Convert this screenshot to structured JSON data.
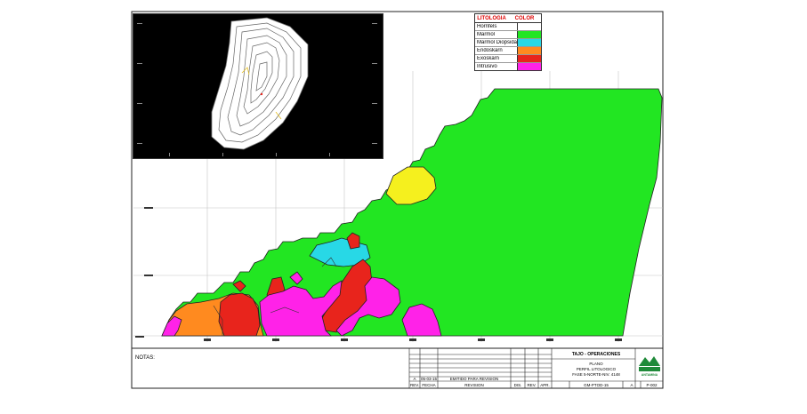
{
  "legend": {
    "header_name": "LITOLOGIA",
    "header_color": "COLOR",
    "items": [
      {
        "label": "Hornfels",
        "color": "#ffffff"
      },
      {
        "label": "Marmol",
        "color": "#22e622"
      },
      {
        "label": "Marmol Diopsida",
        "color": "#28d8e6"
      },
      {
        "label": "Endoskarn",
        "color": "#ff8a1f"
      },
      {
        "label": "Exoskarn",
        "color": "#e8241c"
      },
      {
        "label": "Intrusivo",
        "color": "#ff22e8"
      }
    ]
  },
  "notes_label": "NOTAS:",
  "title_block": {
    "department": "TAJO - OPERACIONES",
    "line1": "PLANO",
    "line2": "PERFIL LITOLOGICO",
    "line3": "FASE 5-NORTE-NIV. 4148",
    "logo_text": "ANTAMINA",
    "revision_letter": "A",
    "revision_date": "05-03-15",
    "revision_desc": "EMITIDO PARA REVISION",
    "col_rev": "REV.",
    "col_date": "FECHA",
    "col_desc": "REVISION",
    "col_by": "DIS.",
    "col_chk": "REV.",
    "col_app": "APR.",
    "drawing_no": "GM-PTOD-15",
    "sheet_rev": "A",
    "sheet_no": "P-002"
  },
  "colors": {
    "green": "#22e622",
    "cyan": "#28d8e6",
    "orange": "#ff8a1f",
    "red": "#e8241c",
    "magenta": "#ff22e8",
    "yellow": "#f5f01e",
    "grid": "#bfbfbf"
  }
}
